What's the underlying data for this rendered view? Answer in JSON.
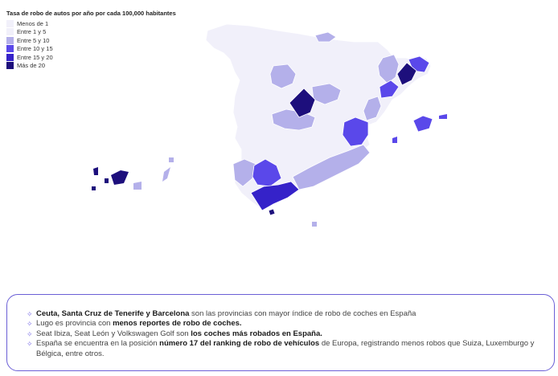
{
  "legend": {
    "title": "Tasa de robo de autos por año por cada 100,000 habitantes",
    "items": [
      {
        "label": "Menos de 1",
        "color": "#f1f0fa"
      },
      {
        "label": "Entre 1 y 5",
        "color": "#f1f0fa"
      },
      {
        "label": "Entre 5 y 10",
        "color": "#b4b0ea"
      },
      {
        "label": "Entre 10 y 15",
        "color": "#5a48ea"
      },
      {
        "label": "Entre 15 y 20",
        "color": "#3522c9"
      },
      {
        "label": "Más de 20",
        "color": "#1d0f7c"
      }
    ]
  },
  "info": {
    "icon": "sparkle-icon",
    "items": [
      {
        "bold": "Ceuta, Santa Cruz de Tenerife y Barcelona",
        "after": " son las provincias con mayor índice de robo de coches en España"
      },
      {
        "before": "Lugo es provincia con ",
        "bold": "menos reportes de robo de coches."
      },
      {
        "before": "Seat Ibiza, Seat León y Volkswagen Golf son ",
        "bold": "los coches más robados en España."
      },
      {
        "before": "España se encuentra en la posición ",
        "bold": "número 17 del ranking de robo de vehículos",
        "after": " de Europa, registrando menos robos que Suiza, Luxemburgo y Bélgica, entre otros."
      }
    ]
  }
}
